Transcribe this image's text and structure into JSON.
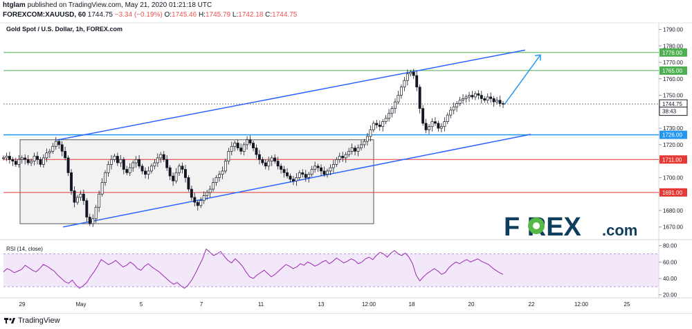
{
  "header": {
    "author": "htglam",
    "published_text": "published on TradingView.com, May 21, 2020 01:21:18 UTC",
    "symbol": "FOREXCOM:XAUUSD, 60",
    "last": "1744.75",
    "change": "−3.34 (−0.19%)",
    "o_label": "O:",
    "o_value": "1745.46",
    "h_label": "H:",
    "h_value": "1745.79",
    "l_label": "L:",
    "l_value": "1742.18",
    "c_label": "C:",
    "c_value": "1744.75"
  },
  "footer": {
    "brand": "TradingView"
  },
  "colors": {
    "green_level": "#4caf50",
    "red_level": "#e53935",
    "blue_level": "#2196f3",
    "channel": "#2962ff",
    "arrow": "#2196f3",
    "rsi": "#9c27b0",
    "rsi_band": "#e8d5f5",
    "candle": "#131722",
    "price_tag": "#131722"
  },
  "chart_data": {
    "type": "candlestick",
    "title": "Gold Spot / U.S. Dollar, 1h, FOREX.com",
    "y_ticks": [
      "1790.00",
      "1780.00",
      "1770.00",
      "1760.00",
      "1750.00",
      "1740.00",
      "1730.00",
      "1720.00",
      "1710.00",
      "1700.00",
      "1690.00",
      "1680.00",
      "1670.00"
    ],
    "ylim": [
      1664,
      1794
    ],
    "x_ticks": [
      "29",
      "May",
      "5",
      "7",
      "11",
      "13",
      "12:00",
      "18",
      "20",
      "22",
      "12:00",
      "25"
    ],
    "price_labels": [
      {
        "text": "1776.00",
        "value": 1776,
        "color": "green"
      },
      {
        "text": "1765.00",
        "value": 1765,
        "color": "green"
      },
      {
        "text": "1744.75",
        "value": 1744.75,
        "color": "dark"
      },
      {
        "text": "38:43",
        "value": 1740.3,
        "color": "dark"
      },
      {
        "text": "1726.00",
        "value": 1726,
        "color": "blue"
      },
      {
        "text": "1711.00",
        "value": 1711,
        "color": "red"
      },
      {
        "text": "1691.00",
        "value": 1691,
        "color": "red"
      }
    ],
    "horizontal_levels": [
      1776,
      1765,
      1726,
      1711,
      1691
    ],
    "approx_close_series": [
      1712,
      1713,
      1711,
      1710,
      1708,
      1711,
      1712,
      1711,
      1709,
      1710,
      1713,
      1711,
      1708,
      1712,
      1715,
      1716,
      1719,
      1722,
      1720,
      1716,
      1712,
      1703,
      1692,
      1685,
      1688,
      1690,
      1686,
      1676,
      1672,
      1675,
      1682,
      1690,
      1697,
      1703,
      1708,
      1711,
      1713,
      1709,
      1711,
      1705,
      1703,
      1706,
      1709,
      1711,
      1707,
      1704,
      1702,
      1704,
      1707,
      1709,
      1712,
      1714,
      1711,
      1706,
      1701,
      1698,
      1703,
      1707,
      1705,
      1700,
      1693,
      1688,
      1685,
      1683,
      1686,
      1689,
      1691,
      1693,
      1697,
      1700,
      1702,
      1704,
      1710,
      1716,
      1719,
      1721,
      1718,
      1716,
      1720,
      1723,
      1721,
      1718,
      1714,
      1711,
      1709,
      1707,
      1710,
      1712,
      1710,
      1707,
      1705,
      1703,
      1701,
      1699,
      1698,
      1700,
      1703,
      1702,
      1700,
      1702,
      1705,
      1707,
      1706,
      1704,
      1702,
      1704,
      1706,
      1708,
      1711,
      1713,
      1712,
      1714,
      1716,
      1718,
      1716,
      1718,
      1720,
      1722,
      1725,
      1729,
      1733,
      1732,
      1731,
      1734,
      1736,
      1739,
      1742,
      1746,
      1750,
      1755,
      1759,
      1763,
      1764,
      1762,
      1755,
      1742,
      1733,
      1729,
      1731,
      1734,
      1733,
      1730,
      1731,
      1734,
      1738,
      1741,
      1743,
      1745,
      1747,
      1748,
      1749,
      1750,
      1749,
      1751,
      1750,
      1748,
      1747,
      1749,
      1748,
      1746,
      1747,
      1745,
      1744.75
    ],
    "rsi": {
      "label": "RSI (14, close)",
      "y_ticks": [
        "80.00",
        "60.00",
        "40.00",
        "20.00"
      ],
      "ylim": [
        18,
        84
      ],
      "bands": [
        70,
        30
      ],
      "approx_values": [
        48,
        52,
        50,
        47,
        49,
        51,
        56,
        53,
        50,
        48,
        52,
        57,
        55,
        52,
        49,
        44,
        40,
        36,
        34,
        38,
        32,
        28,
        31,
        35,
        42,
        48,
        55,
        63,
        60,
        57,
        59,
        62,
        58,
        54,
        56,
        60,
        57,
        52,
        50,
        55,
        58,
        54,
        51,
        48,
        44,
        40,
        36,
        33,
        35,
        31,
        28,
        32,
        38,
        46,
        55,
        64,
        76,
        72,
        68,
        70,
        73,
        67,
        62,
        59,
        64,
        60,
        55,
        48,
        42,
        40,
        44,
        47,
        50,
        46,
        42,
        45,
        49,
        53,
        57,
        55,
        52,
        54,
        58,
        56,
        60,
        58,
        55,
        57,
        60,
        62,
        58,
        61,
        65,
        62,
        59,
        61,
        64,
        62,
        58,
        60,
        64,
        66,
        63,
        68,
        72,
        70,
        66,
        71,
        74,
        70,
        68,
        71,
        66,
        58,
        44,
        37,
        42,
        46,
        49,
        52,
        49,
        45,
        47,
        53,
        57,
        60,
        58,
        61,
        63,
        60,
        62,
        64,
        61,
        59,
        57,
        53,
        50,
        47,
        45
      ]
    }
  }
}
